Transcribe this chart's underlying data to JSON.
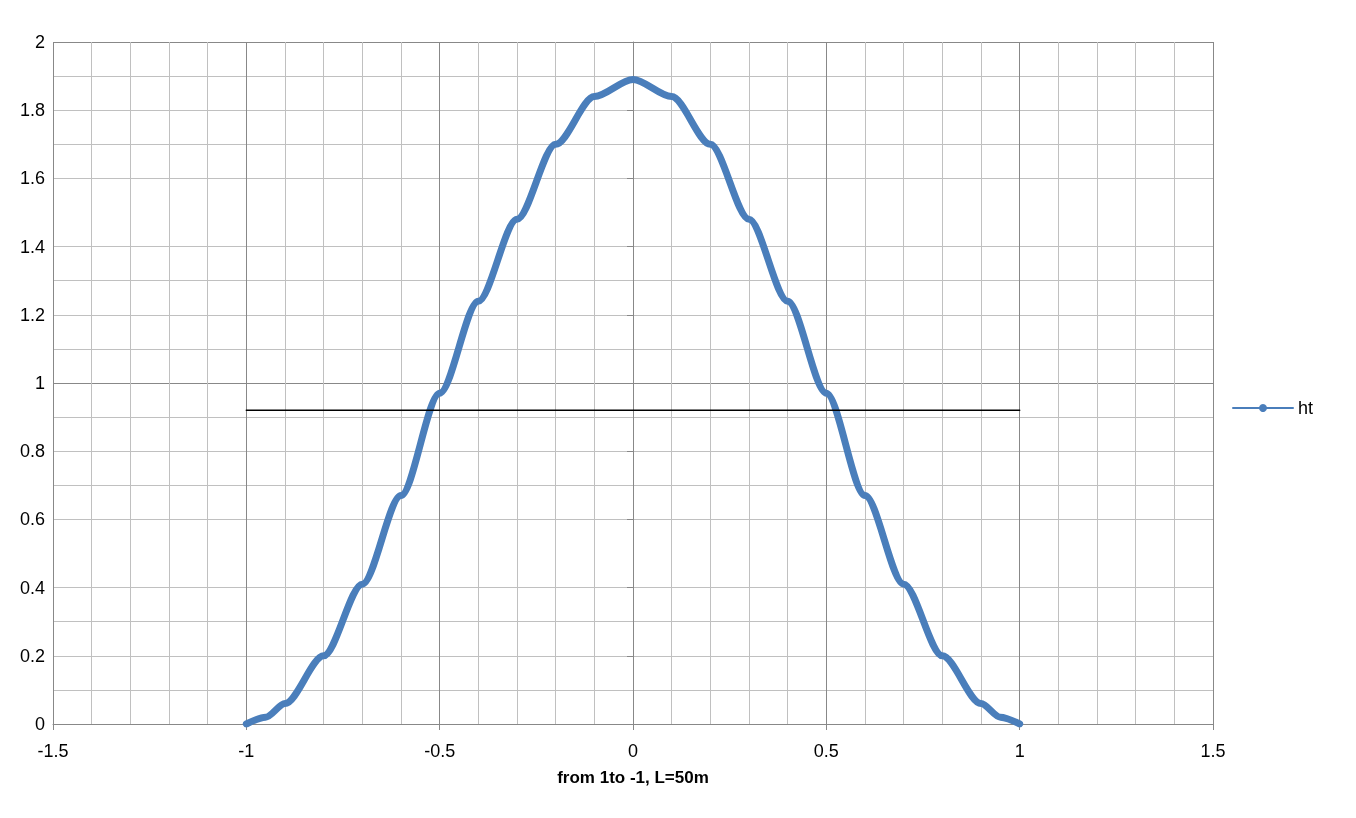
{
  "chart_data": {
    "type": "line",
    "xlabel": "from 1to -1, L=50m",
    "xlim": [
      -1.5,
      1.5
    ],
    "xticks": [
      -1.5,
      -1,
      -0.5,
      0,
      0.5,
      1,
      1.5
    ],
    "ylim": [
      0,
      2
    ],
    "yticks": [
      0,
      0.2,
      0.4,
      0.6,
      0.8,
      1,
      1.2,
      1.4,
      1.6,
      1.8,
      2
    ],
    "grid": true,
    "legend": "right",
    "marker": "none",
    "series": [
      {
        "name": "ht",
        "color": "#4a7ebb",
        "x": [
          -1,
          -0.95,
          -0.9,
          -0.8,
          -0.7,
          -0.6,
          -0.5,
          -0.4,
          -0.3,
          -0.2,
          -0.1,
          0,
          0.1,
          0.2,
          0.3,
          0.4,
          0.5,
          0.6,
          0.7,
          0.8,
          0.9,
          0.95,
          1
        ],
        "values": [
          0,
          0.02,
          0.06,
          0.2,
          0.41,
          0.67,
          0.97,
          1.24,
          1.48,
          1.7,
          1.84,
          1.89,
          1.84,
          1.7,
          1.48,
          1.24,
          0.97,
          0.67,
          0.41,
          0.2,
          0.06,
          0.02,
          0
        ]
      },
      {
        "color": "#000000",
        "x": [
          -1,
          1
        ],
        "values": [
          0.92,
          0.92
        ]
      }
    ]
  }
}
